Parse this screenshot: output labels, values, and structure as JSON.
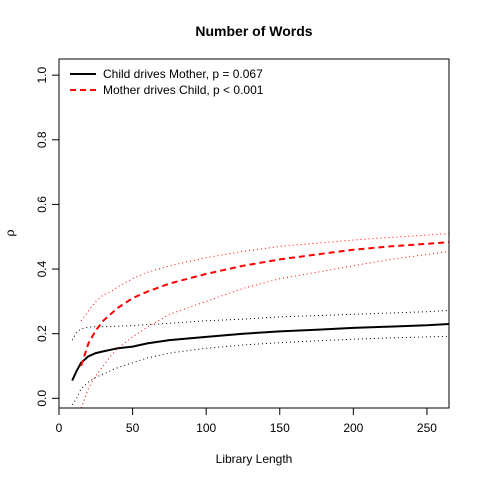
{
  "chart_data": {
    "type": "line",
    "title": "Number of Words",
    "xlabel": "Library Length",
    "ylabel": "ρ",
    "xlim": [
      0,
      265
    ],
    "ylim": [
      -0.03,
      1.05
    ],
    "xticks": [
      0,
      50,
      100,
      150,
      200,
      250
    ],
    "yticks": [
      0.0,
      0.2,
      0.4,
      0.6,
      0.8,
      1.0
    ],
    "xtick_labels": [
      "0",
      "50",
      "100",
      "150",
      "200",
      "250"
    ],
    "ytick_labels": [
      "0.0",
      "0.2",
      "0.4",
      "0.6",
      "0.8",
      "1.0"
    ],
    "legend_position": "top-left",
    "x": [
      9,
      12,
      15,
      20,
      25,
      30,
      35,
      40,
      50,
      60,
      75,
      100,
      125,
      150,
      175,
      200,
      225,
      250,
      265
    ],
    "series": [
      {
        "name": "Child drives Mother, p = 0.067",
        "color": "#000000",
        "style": "solid",
        "values": [
          0.055,
          0.085,
          0.11,
          0.13,
          0.14,
          0.145,
          0.15,
          0.155,
          0.16,
          0.17,
          0.18,
          0.19,
          0.2,
          0.207,
          0.212,
          0.218,
          0.222,
          0.226,
          0.23
        ],
        "upper": [
          0.18,
          0.205,
          0.215,
          0.22,
          0.222,
          0.222,
          0.222,
          0.223,
          0.225,
          0.228,
          0.232,
          0.24,
          0.245,
          0.252,
          0.256,
          0.26,
          0.264,
          0.268,
          0.272
        ],
        "lower": [
          -0.02,
          0.0,
          0.03,
          0.05,
          0.065,
          0.075,
          0.085,
          0.095,
          0.11,
          0.125,
          0.14,
          0.155,
          0.165,
          0.172,
          0.178,
          0.183,
          0.187,
          0.19,
          0.192
        ]
      },
      {
        "name": "Mother drives Child, p < 0.001",
        "color": "#ff0000",
        "style": "dashed",
        "values": [
          null,
          null,
          0.1,
          0.17,
          0.21,
          0.24,
          0.26,
          0.28,
          0.31,
          0.33,
          0.355,
          0.385,
          0.41,
          0.43,
          0.445,
          0.46,
          0.47,
          0.478,
          0.483
        ],
        "upper": [
          null,
          null,
          0.24,
          0.27,
          0.3,
          0.32,
          0.33,
          0.345,
          0.37,
          0.39,
          0.41,
          0.435,
          0.455,
          0.47,
          0.48,
          0.49,
          0.498,
          0.505,
          0.51
        ],
        "lower": [
          null,
          null,
          -0.03,
          0.03,
          0.07,
          0.1,
          0.13,
          0.155,
          0.19,
          0.22,
          0.26,
          0.3,
          0.34,
          0.37,
          0.39,
          0.41,
          0.43,
          0.445,
          0.455
        ]
      }
    ]
  }
}
